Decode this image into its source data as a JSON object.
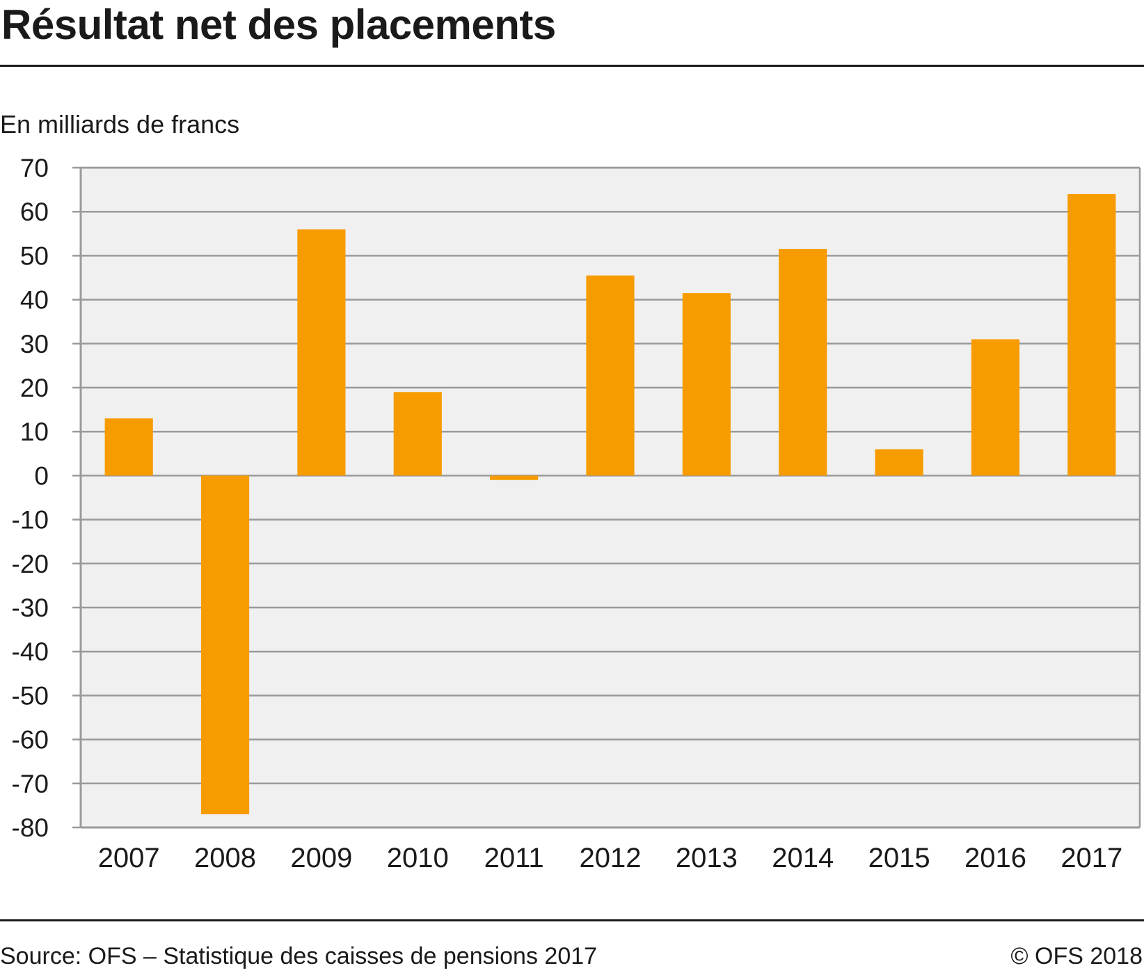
{
  "header": {
    "title": "Résultat net des placements"
  },
  "footer": {
    "source": "Source: OFS – Statistique des caisses de pensions 2017",
    "credit": "© OFS 2018"
  },
  "colors": {
    "bar": "#f79c00",
    "plot_background": "#f0f0f0",
    "grid": "#9a9a9a",
    "text": "#1a1a1a"
  },
  "chart_data": {
    "type": "bar",
    "title": "Résultat net des placements",
    "ylabel": "En milliards de francs",
    "xlabel": "",
    "categories": [
      "2007",
      "2008",
      "2009",
      "2010",
      "2011",
      "2012",
      "2013",
      "2014",
      "2015",
      "2016",
      "2017"
    ],
    "values": [
      13,
      -77,
      56,
      19,
      -1,
      45.5,
      41.5,
      51.5,
      6,
      31,
      64
    ],
    "ylim": [
      -80,
      70
    ],
    "yticks": [
      70,
      60,
      50,
      40,
      30,
      20,
      10,
      0,
      -10,
      -20,
      -30,
      -40,
      -50,
      -60,
      -70,
      -80
    ],
    "ytick_labels": [
      "70",
      "60",
      "50",
      "40",
      "30",
      "20",
      "10",
      "0",
      "-10",
      "-20",
      "-30",
      "-40",
      "-50",
      "-60",
      "-70",
      "-80"
    ],
    "grid": true,
    "legend": "none"
  }
}
